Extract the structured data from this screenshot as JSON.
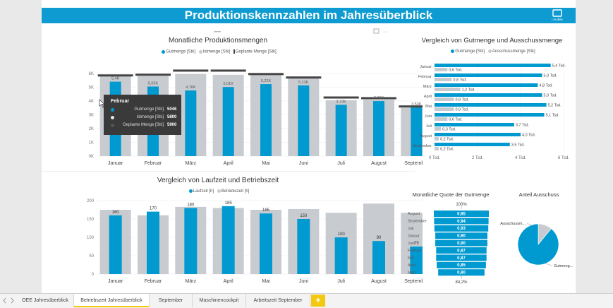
{
  "header": {
    "title": "Produktionskennzahlen im Jahresüberblick",
    "logo_text": "i.mobile"
  },
  "colors": {
    "blue": "#0099d0",
    "gray": "#c8ccd0",
    "dark": "#444444",
    "accent": "#0e9bd1"
  },
  "production": {
    "title": "Monatliche Produktionsmengen",
    "legend": [
      "Gutmenge [Stk]",
      "Istmenge [Stk]",
      "Geplante Menge [Stk]"
    ]
  },
  "tooltip": {
    "title": "Februar",
    "rows": [
      {
        "label": "Gutmenge [Stk]",
        "value": "5046"
      },
      {
        "label": "Istmenge [Stk]",
        "value": "5800"
      },
      {
        "label": "Geplante Menge [Stk]",
        "value": "5900"
      }
    ]
  },
  "runtime": {
    "title": "Vergleich von Laufzeit und Betriebszeit",
    "legend": [
      "Laufzeit [h]",
      "Betriebszeit [h]"
    ]
  },
  "comparison": {
    "title": "Vergleich von Gutmenge und Ausschussmenge",
    "legend": [
      "Gutmenge [Stk]",
      "Ausschussmenge [Stk]"
    ]
  },
  "quote": {
    "title": "Monatliche Quote der Gutmenge",
    "top_label": "100%",
    "bottom_label": "84,2%"
  },
  "scrap": {
    "title": "Anteil Ausschuss"
  },
  "tabs": {
    "items": [
      "OEE Jahresüberblick",
      "Betriebszeit Jahresüberblick",
      "September",
      "Maschinencockpit",
      "Arbeitszeit September"
    ],
    "active": "Betriebszeit Jahresüberblick",
    "add": "+"
  },
  "chart_data": [
    {
      "type": "bar",
      "title": "Monatliche Produktionsmengen",
      "categories": [
        "Januar",
        "Februar",
        "März",
        "April",
        "Mai",
        "Juni",
        "Juli",
        "August",
        "September"
      ],
      "y_ticks": [
        "0K",
        "1K",
        "2K",
        "3K",
        "4K",
        "5K",
        "6K"
      ],
      "ylim": [
        0,
        6300
      ],
      "series": [
        {
          "name": "Gutmenge [Stk]",
          "values": [
            5400,
            5046,
            4760,
            5010,
            5220,
            5130,
            3720,
            3990,
            3530
          ]
        },
        {
          "name": "Istmenge [Stk]",
          "values": [
            5900,
            5800,
            5950,
            5900,
            5950,
            5650,
            4050,
            4100,
            3500
          ]
        },
        {
          "name": "Geplante Menge [Stk]",
          "values": [
            5850,
            5900,
            6200,
            6200,
            5950,
            5700,
            4250,
            4200,
            3600
          ]
        }
      ],
      "data_labels": [
        "5,4K",
        "5,05K",
        "4,76K",
        "5,01K",
        "5,22K",
        "5,13K",
        "3,72K",
        "3,99K",
        "3,53K"
      ]
    },
    {
      "type": "bar",
      "title": "Vergleich von Laufzeit und Betriebszeit",
      "categories": [
        "Januar",
        "Februar",
        "März",
        "April",
        "Mai",
        "Juni",
        "Juli",
        "August",
        "September"
      ],
      "y_ticks": [
        "0",
        "50",
        "100",
        "150",
        "200"
      ],
      "ylim": [
        0,
        200
      ],
      "series": [
        {
          "name": "Laufzeit [h]",
          "values": [
            160,
            170,
            180,
            185,
            165,
            150,
            100,
            90,
            75
          ]
        },
        {
          "name": "Betriebszeit [h]",
          "values": [
            175,
            160,
            183,
            180,
            175,
            177,
            167,
            192,
            167
          ]
        }
      ],
      "data_labels": [
        "160",
        "170",
        "180",
        "185",
        "165",
        "150",
        "100",
        "90",
        "75"
      ]
    },
    {
      "type": "bar",
      "orientation": "horizontal",
      "title": "Vergleich von Gutmenge und Ausschussmenge",
      "categories": [
        "Januar",
        "Februar",
        "März",
        "April",
        "Mai",
        "Juni",
        "Juli",
        "August",
        "September"
      ],
      "x_ticks": [
        "0 Tsd.",
        "2 Tsd.",
        "4 Tsd.",
        "6 Tsd."
      ],
      "xlim": [
        0,
        6
      ],
      "series": [
        {
          "name": "Gutmenge [Stk]",
          "values": [
            5.4,
            5.0,
            4.8,
            5.0,
            5.2,
            5.1,
            3.7,
            4.0,
            3.5
          ],
          "labels": [
            "5,4 Tsd.",
            "5,0 Tsd.",
            "4,8 Tsd.",
            "5,0 Tsd.",
            "5,2 Tsd.",
            "5,1 Tsd.",
            "3,7 Tsd.",
            "4,0 Tsd.",
            "3,5 Tsd."
          ]
        },
        {
          "name": "Ausschussmenge [Stk]",
          "values": [
            0.6,
            0.8,
            1.2,
            0.9,
            0.9,
            0.6,
            0.3,
            0.2,
            0.2
          ],
          "labels": [
            "0,6 Tsd.",
            "0,8 Tsd.",
            "1,2 Tsd.",
            "0,9 Tsd.",
            "0,9 Tsd.",
            "0,6 Tsd.",
            "0,3 Tsd.",
            "0,2 Tsd.",
            "0,2 Tsd."
          ]
        }
      ]
    },
    {
      "type": "bar",
      "orientation": "funnel",
      "title": "Monatliche Quote der Gutmenge",
      "categories": [
        "August",
        "September",
        "Juli",
        "Januar",
        "Juni",
        "Februar",
        "Mai",
        "April",
        "März"
      ],
      "values": [
        0.95,
        0.94,
        0.93,
        0.9,
        0.9,
        0.87,
        0.87,
        0.85,
        0.8
      ],
      "labels": [
        "0,95",
        "0,94",
        "0,93",
        "0,90",
        "0,90",
        "0,87",
        "0,87",
        "0,85",
        "0,80"
      ]
    },
    {
      "type": "pie",
      "title": "Anteil Ausschuss",
      "categories": [
        "Ausschussm...",
        "Gutmeng..."
      ],
      "values": [
        11,
        89
      ]
    }
  ]
}
